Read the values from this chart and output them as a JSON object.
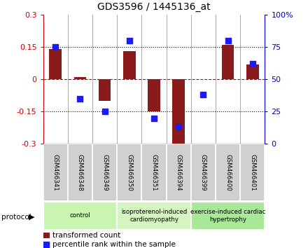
{
  "title": "GDS3596 / 1445136_at",
  "samples": [
    "GSM466341",
    "GSM466348",
    "GSM466349",
    "GSM466350",
    "GSM466351",
    "GSM466394",
    "GSM466399",
    "GSM466400",
    "GSM466401"
  ],
  "transformed_count": [
    0.14,
    0.01,
    -0.1,
    0.13,
    -0.15,
    -0.3,
    0.0,
    0.16,
    0.07
  ],
  "percentile_rank": [
    75,
    35,
    25,
    80,
    20,
    13,
    38,
    80,
    62
  ],
  "ylim_left": [
    -0.3,
    0.3
  ],
  "ylim_right": [
    0,
    100
  ],
  "yticks_left": [
    -0.3,
    -0.15,
    0,
    0.15,
    0.3
  ],
  "yticks_right": [
    0,
    25,
    50,
    75,
    100
  ],
  "ytick_labels_left": [
    "-0.3",
    "-0.15",
    "0",
    "0.15",
    "0.3"
  ],
  "ytick_labels_right": [
    "0",
    "25",
    "50",
    "75",
    "100%"
  ],
  "hlines_dotted": [
    0.15,
    -0.15
  ],
  "hline_zero_color": "#cc0000",
  "bar_color": "#8B1A1A",
  "dot_color": "#1a1aff",
  "groups": [
    {
      "label": "control",
      "start": 0,
      "end": 3,
      "color": "#c8f5b0"
    },
    {
      "label": "isoproterenol-induced\ncardiomyopathy",
      "start": 3,
      "end": 6,
      "color": "#d5f5c0"
    },
    {
      "label": "exercise-induced cardiac\nhypertrophy",
      "start": 6,
      "end": 9,
      "color": "#a8e898"
    }
  ],
  "legend_bar_label": "transformed count",
  "legend_dot_label": "percentile rank within the sample",
  "protocol_label": "protocol",
  "bar_width": 0.5,
  "dot_size": 35,
  "left_tick_color": "#cc0000",
  "right_tick_color": "#0000cc",
  "sample_box_color": "#d0d0d0",
  "separator_color": "#888888"
}
